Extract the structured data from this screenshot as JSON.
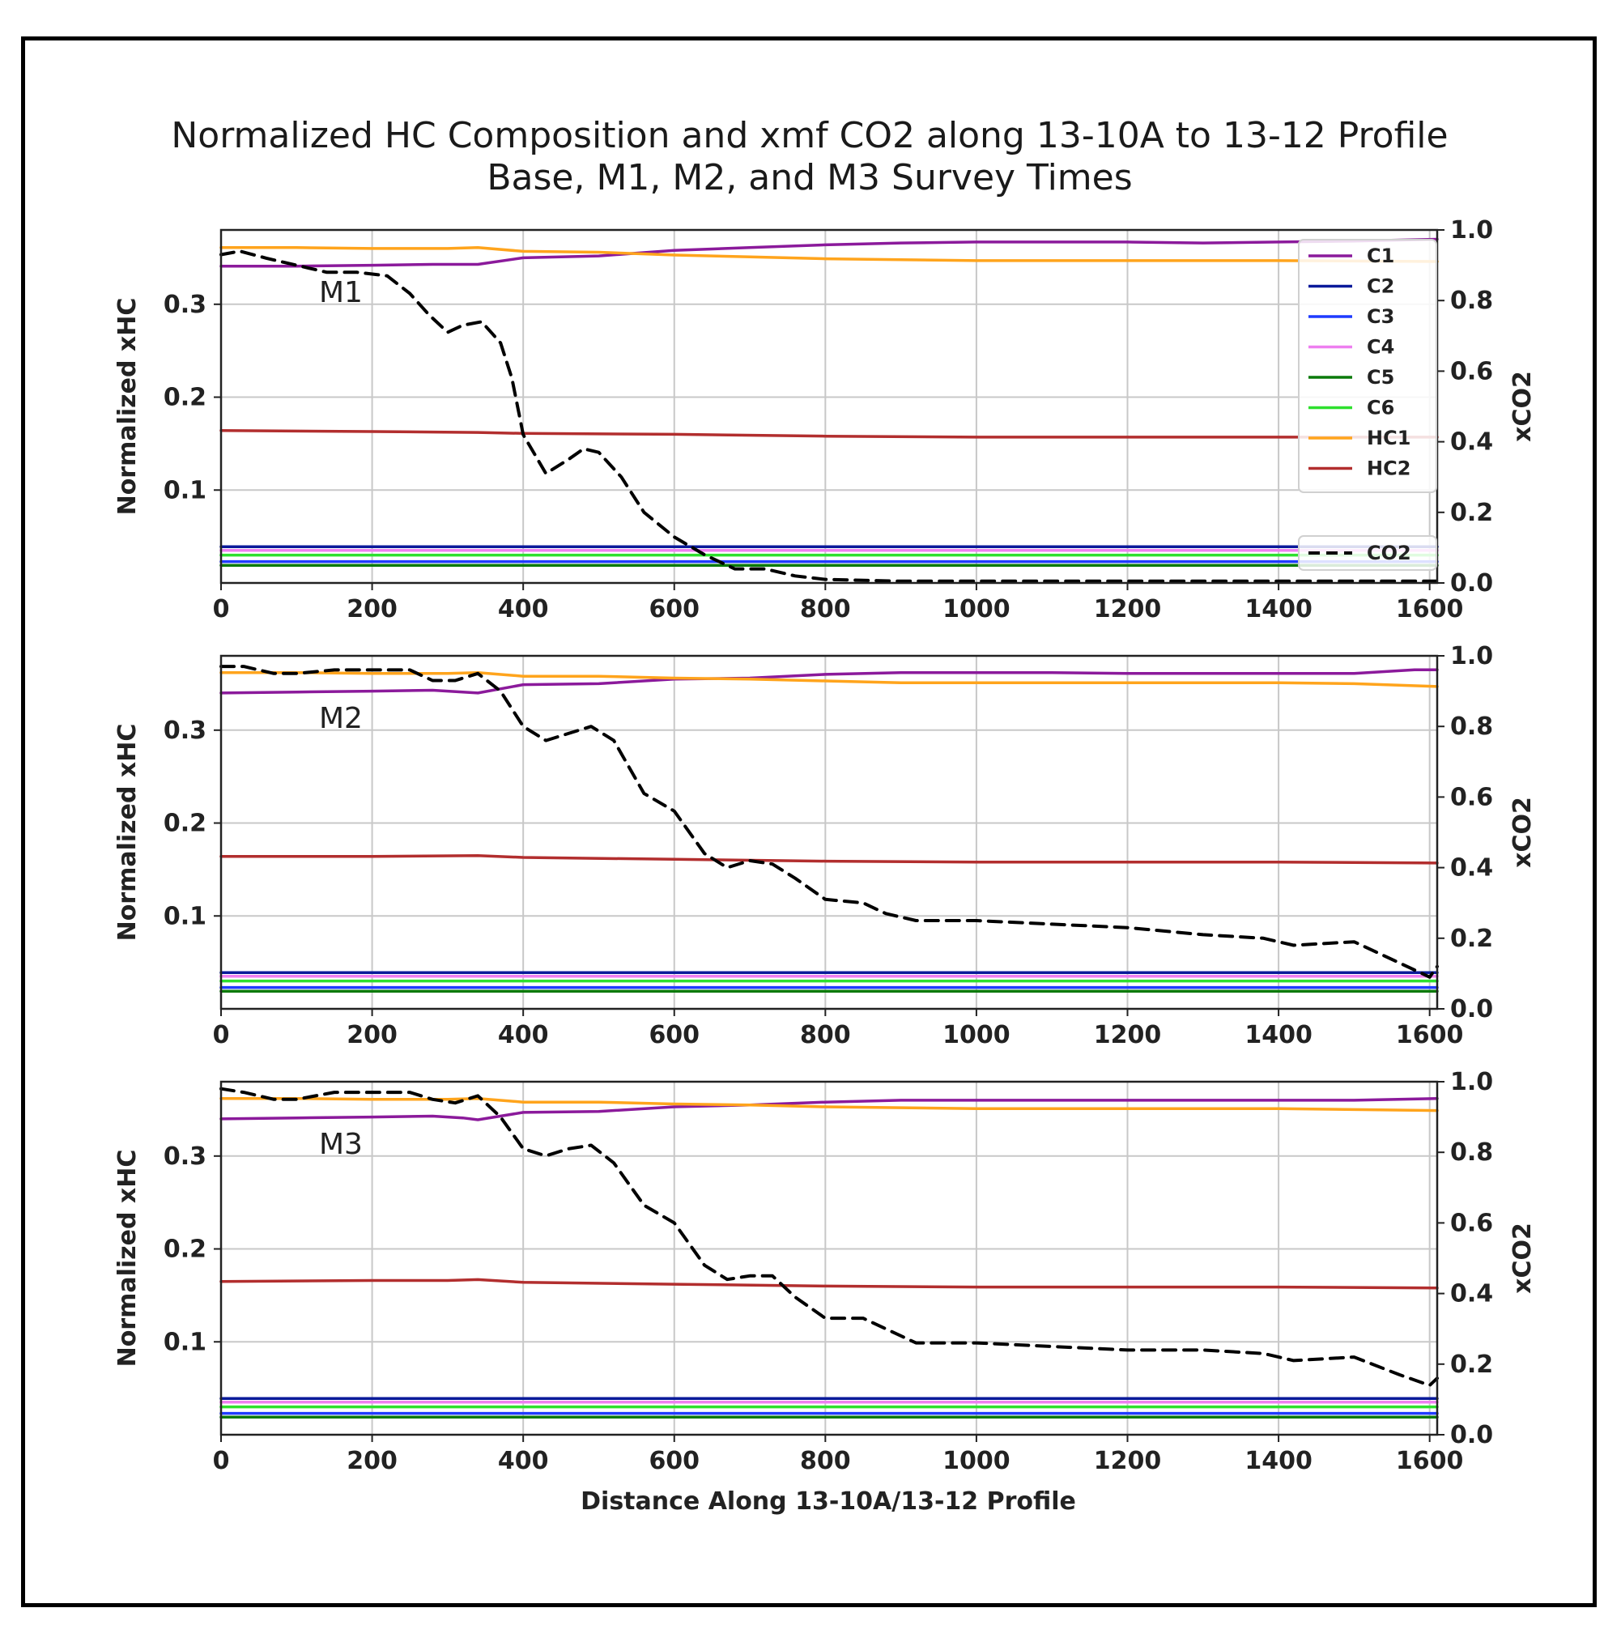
{
  "chart_data": {
    "type": "line",
    "title_lines": [
      "Normalized HC Composition and xmf CO2 along 13-10A to 13-12 Profile",
      "Base, M1, M2, and M3 Survey Times"
    ],
    "xlabel": "Distance Along 13-10A/13-12 Profile",
    "ylabel_left": "Normalized xHC",
    "ylabel_right": "xCO2",
    "xlim": [
      0,
      1610
    ],
    "ylim_left": [
      0,
      0.38
    ],
    "ylim_right": [
      0,
      1.0
    ],
    "x_ticks": [
      0,
      200,
      400,
      600,
      800,
      1000,
      1200,
      1400,
      1600
    ],
    "y_ticks_left": [
      0.1,
      0.2,
      0.3
    ],
    "y_ticks_left_labels": [
      "0.1",
      "0.2",
      "0.3"
    ],
    "y_ticks_right": [
      0.0,
      0.2,
      0.4,
      0.6,
      0.8,
      1.0
    ],
    "y_ticks_right_labels": [
      "0.0",
      "0.2",
      "0.4",
      "0.6",
      "0.8",
      "1.0"
    ],
    "grid": true,
    "legend_hc": [
      {
        "name": "C1",
        "color": "#8b1a9b"
      },
      {
        "name": "C2",
        "color": "#0a1a9a"
      },
      {
        "name": "C3",
        "color": "#1f3bff"
      },
      {
        "name": "C4",
        "color": "#ee7ff0"
      },
      {
        "name": "C5",
        "color": "#0a7a0a"
      },
      {
        "name": "C6",
        "color": "#2ee02e"
      },
      {
        "name": "HC1",
        "color": "#ffa41c"
      },
      {
        "name": "HC2",
        "color": "#b22e2e"
      }
    ],
    "legend_co2": {
      "name": "CO2",
      "color": "#000000"
    },
    "panels": [
      {
        "label": "M1",
        "series": [
          {
            "name": "C1",
            "axis": "left",
            "color": "#8b1a9b",
            "x": [
              0,
              100,
              200,
              280,
              340,
              400,
              500,
              600,
              700,
              800,
              900,
              1000,
              1100,
              1200,
              1300,
              1400,
              1500,
              1610
            ],
            "y": [
              0.341,
              0.341,
              0.342,
              0.343,
              0.343,
              0.35,
              0.352,
              0.358,
              0.361,
              0.364,
              0.366,
              0.367,
              0.367,
              0.367,
              0.366,
              0.367,
              0.368,
              0.37
            ]
          },
          {
            "name": "C2",
            "axis": "left",
            "color": "#0a1a9a",
            "x": [
              0,
              1610
            ],
            "y": [
              0.039,
              0.039
            ]
          },
          {
            "name": "C3",
            "axis": "left",
            "color": "#1f3bff",
            "x": [
              0,
              1610
            ],
            "y": [
              0.023,
              0.023
            ]
          },
          {
            "name": "C4",
            "axis": "left",
            "color": "#ee7ff0",
            "x": [
              0,
              1610
            ],
            "y": [
              0.035,
              0.035
            ]
          },
          {
            "name": "C5",
            "axis": "left",
            "color": "#0a7a0a",
            "x": [
              0,
              1610
            ],
            "y": [
              0.019,
              0.019
            ]
          },
          {
            "name": "C6",
            "axis": "left",
            "color": "#2ee02e",
            "x": [
              0,
              1610
            ],
            "y": [
              0.03,
              0.03
            ]
          },
          {
            "name": "HC1",
            "axis": "left",
            "color": "#ffa41c",
            "x": [
              0,
              100,
              200,
              300,
              340,
              400,
              500,
              600,
              700,
              800,
              900,
              1000,
              1200,
              1400,
              1610
            ],
            "y": [
              0.361,
              0.361,
              0.36,
              0.36,
              0.361,
              0.357,
              0.356,
              0.353,
              0.351,
              0.349,
              0.348,
              0.347,
              0.347,
              0.347,
              0.346
            ]
          },
          {
            "name": "HC2",
            "axis": "left",
            "color": "#b22e2e",
            "x": [
              0,
              200,
              340,
              400,
              600,
              800,
              1000,
              1200,
              1400,
              1610
            ],
            "y": [
              0.164,
              0.163,
              0.162,
              0.161,
              0.16,
              0.158,
              0.157,
              0.157,
              0.157,
              0.157
            ]
          },
          {
            "name": "CO2",
            "axis": "right",
            "dashed": true,
            "color": "#000000",
            "x": [
              0,
              25,
              60,
              100,
              140,
              180,
              220,
              250,
              275,
              300,
              320,
              345,
              370,
              385,
              400,
              430,
              460,
              480,
              500,
              530,
              560,
              600,
              640,
              680,
              720,
              760,
              800,
              900,
              1000,
              1200,
              1400,
              1610
            ],
            "y": [
              0.93,
              0.94,
              0.92,
              0.9,
              0.88,
              0.88,
              0.87,
              0.82,
              0.76,
              0.71,
              0.73,
              0.74,
              0.68,
              0.58,
              0.42,
              0.31,
              0.35,
              0.38,
              0.37,
              0.3,
              0.2,
              0.13,
              0.08,
              0.04,
              0.04,
              0.02,
              0.01,
              0.005,
              0.005,
              0.005,
              0.005,
              0.005
            ]
          }
        ]
      },
      {
        "label": "M2",
        "series": [
          {
            "name": "C1",
            "axis": "left",
            "color": "#8b1a9b",
            "x": [
              0,
              100,
              200,
              280,
              340,
              400,
              500,
              600,
              700,
              800,
              900,
              1000,
              1100,
              1200,
              1300,
              1400,
              1500,
              1580,
              1610
            ],
            "y": [
              0.34,
              0.341,
              0.342,
              0.343,
              0.34,
              0.349,
              0.35,
              0.355,
              0.356,
              0.36,
              0.362,
              0.362,
              0.362,
              0.361,
              0.361,
              0.361,
              0.361,
              0.365,
              0.365
            ]
          },
          {
            "name": "C2",
            "axis": "left",
            "color": "#0a1a9a",
            "x": [
              0,
              1610
            ],
            "y": [
              0.039,
              0.039
            ]
          },
          {
            "name": "C3",
            "axis": "left",
            "color": "#1f3bff",
            "x": [
              0,
              1610
            ],
            "y": [
              0.023,
              0.023
            ]
          },
          {
            "name": "C4",
            "axis": "left",
            "color": "#ee7ff0",
            "x": [
              0,
              1610
            ],
            "y": [
              0.035,
              0.035
            ]
          },
          {
            "name": "C5",
            "axis": "left",
            "color": "#0a7a0a",
            "x": [
              0,
              1610
            ],
            "y": [
              0.019,
              0.019
            ]
          },
          {
            "name": "C6",
            "axis": "left",
            "color": "#2ee02e",
            "x": [
              0,
              1610
            ],
            "y": [
              0.03,
              0.03
            ]
          },
          {
            "name": "HC1",
            "axis": "left",
            "color": "#ffa41c",
            "x": [
              0,
              100,
              200,
              300,
              340,
              400,
              500,
              600,
              700,
              800,
              900,
              1000,
              1200,
              1400,
              1500,
              1610
            ],
            "y": [
              0.362,
              0.362,
              0.361,
              0.361,
              0.362,
              0.358,
              0.358,
              0.356,
              0.355,
              0.353,
              0.351,
              0.351,
              0.351,
              0.351,
              0.35,
              0.347
            ]
          },
          {
            "name": "HC2",
            "axis": "left",
            "color": "#b22e2e",
            "x": [
              0,
              200,
              340,
              400,
              600,
              800,
              1000,
              1200,
              1400,
              1610
            ],
            "y": [
              0.164,
              0.164,
              0.165,
              0.163,
              0.161,
              0.159,
              0.158,
              0.158,
              0.158,
              0.157
            ]
          },
          {
            "name": "CO2",
            "axis": "right",
            "dashed": true,
            "color": "#000000",
            "x": [
              0,
              30,
              70,
              100,
              150,
              200,
              250,
              280,
              310,
              340,
              370,
              400,
              430,
              460,
              490,
              520,
              560,
              600,
              640,
              670,
              700,
              730,
              760,
              800,
              850,
              880,
              920,
              1000,
              1100,
              1200,
              1300,
              1380,
              1420,
              1500,
              1560,
              1600,
              1610
            ],
            "y": [
              0.97,
              0.97,
              0.95,
              0.95,
              0.96,
              0.96,
              0.96,
              0.93,
              0.93,
              0.95,
              0.9,
              0.8,
              0.76,
              0.78,
              0.8,
              0.76,
              0.61,
              0.56,
              0.44,
              0.4,
              0.42,
              0.41,
              0.37,
              0.31,
              0.3,
              0.27,
              0.25,
              0.25,
              0.24,
              0.23,
              0.21,
              0.2,
              0.18,
              0.19,
              0.13,
              0.09,
              0.12
            ]
          }
        ]
      },
      {
        "label": "M3",
        "series": [
          {
            "name": "C1",
            "axis": "left",
            "color": "#8b1a9b",
            "x": [
              0,
              100,
              200,
              280,
              320,
              340,
              400,
              500,
              600,
              700,
              800,
              900,
              1000,
              1100,
              1200,
              1300,
              1400,
              1500,
              1610
            ],
            "y": [
              0.34,
              0.341,
              0.342,
              0.343,
              0.341,
              0.339,
              0.347,
              0.348,
              0.353,
              0.355,
              0.358,
              0.36,
              0.36,
              0.36,
              0.36,
              0.36,
              0.36,
              0.36,
              0.362
            ]
          },
          {
            "name": "C2",
            "axis": "left",
            "color": "#0a1a9a",
            "x": [
              0,
              1610
            ],
            "y": [
              0.039,
              0.039
            ]
          },
          {
            "name": "C3",
            "axis": "left",
            "color": "#1f3bff",
            "x": [
              0,
              1610
            ],
            "y": [
              0.023,
              0.023
            ]
          },
          {
            "name": "C4",
            "axis": "left",
            "color": "#ee7ff0",
            "x": [
              0,
              1610
            ],
            "y": [
              0.035,
              0.035
            ]
          },
          {
            "name": "C5",
            "axis": "left",
            "color": "#0a7a0a",
            "x": [
              0,
              1610
            ],
            "y": [
              0.019,
              0.019
            ]
          },
          {
            "name": "C6",
            "axis": "left",
            "color": "#2ee02e",
            "x": [
              0,
              1610
            ],
            "y": [
              0.03,
              0.03
            ]
          },
          {
            "name": "HC1",
            "axis": "left",
            "color": "#ffa41c",
            "x": [
              0,
              100,
              200,
              300,
              340,
              400,
              500,
              600,
              700,
              800,
              900,
              1000,
              1200,
              1400,
              1500,
              1610
            ],
            "y": [
              0.362,
              0.362,
              0.361,
              0.361,
              0.362,
              0.358,
              0.358,
              0.356,
              0.355,
              0.353,
              0.352,
              0.351,
              0.351,
              0.351,
              0.35,
              0.349
            ]
          },
          {
            "name": "HC2",
            "axis": "left",
            "color": "#b22e2e",
            "x": [
              0,
              200,
              300,
              340,
              400,
              600,
              800,
              1000,
              1200,
              1400,
              1610
            ],
            "y": [
              0.165,
              0.166,
              0.166,
              0.167,
              0.164,
              0.162,
              0.16,
              0.159,
              0.159,
              0.159,
              0.158
            ]
          },
          {
            "name": "CO2",
            "axis": "right",
            "dashed": true,
            "color": "#000000",
            "x": [
              0,
              30,
              70,
              100,
              150,
              200,
              250,
              280,
              310,
              340,
              370,
              400,
              430,
              460,
              490,
              520,
              560,
              600,
              640,
              670,
              700,
              730,
              760,
              800,
              850,
              880,
              920,
              1000,
              1100,
              1200,
              1300,
              1380,
              1420,
              1500,
              1560,
              1600,
              1610
            ],
            "y": [
              0.98,
              0.97,
              0.95,
              0.95,
              0.97,
              0.97,
              0.97,
              0.95,
              0.94,
              0.96,
              0.9,
              0.81,
              0.79,
              0.81,
              0.82,
              0.77,
              0.65,
              0.6,
              0.48,
              0.44,
              0.45,
              0.45,
              0.39,
              0.33,
              0.33,
              0.3,
              0.26,
              0.26,
              0.25,
              0.24,
              0.24,
              0.23,
              0.21,
              0.22,
              0.17,
              0.14,
              0.16
            ]
          }
        ]
      }
    ]
  }
}
